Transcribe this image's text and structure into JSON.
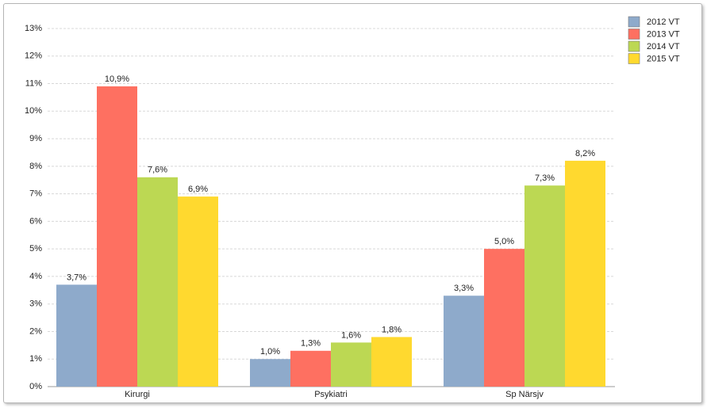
{
  "chart_data": {
    "type": "bar",
    "categories": [
      "Kirurgi",
      "Psykiatri",
      "Sp Närsjv"
    ],
    "series": [
      {
        "name": "2012 VT",
        "color": "#8eaacb",
        "values": [
          3.7,
          1.0,
          3.3
        ],
        "value_labels": [
          "3,7%",
          "1,0%",
          "3,3%"
        ]
      },
      {
        "name": "2013 VT",
        "color": "#fe7061",
        "values": [
          10.9,
          1.3,
          5.0
        ],
        "value_labels": [
          "10,9%",
          "1,3%",
          "5,0%"
        ]
      },
      {
        "name": "2014 VT",
        "color": "#bcd853",
        "values": [
          7.6,
          1.6,
          7.3
        ],
        "value_labels": [
          "7,6%",
          "1,6%",
          "7,3%"
        ]
      },
      {
        "name": "2015 VT",
        "color": "#ffd92f",
        "values": [
          6.9,
          1.8,
          8.2
        ],
        "value_labels": [
          "6,9%",
          "1,8%",
          "8,2%"
        ]
      }
    ],
    "ylim": [
      0,
      13
    ],
    "yticks": [
      {
        "value": 0,
        "label": "0%"
      },
      {
        "value": 1,
        "label": "1%"
      },
      {
        "value": 2,
        "label": "2%"
      },
      {
        "value": 3,
        "label": "3%"
      },
      {
        "value": 4,
        "label": "4%"
      },
      {
        "value": 5,
        "label": "5%"
      },
      {
        "value": 6,
        "label": "6%"
      },
      {
        "value": 7,
        "label": "7%"
      },
      {
        "value": 8,
        "label": "8%"
      },
      {
        "value": 9,
        "label": "9%"
      },
      {
        "value": 10,
        "label": "10%"
      },
      {
        "value": 11,
        "label": "11%"
      },
      {
        "value": 12,
        "label": "12%"
      },
      {
        "value": 13,
        "label": "13%"
      }
    ],
    "grid": true,
    "legend": "top-right"
  }
}
